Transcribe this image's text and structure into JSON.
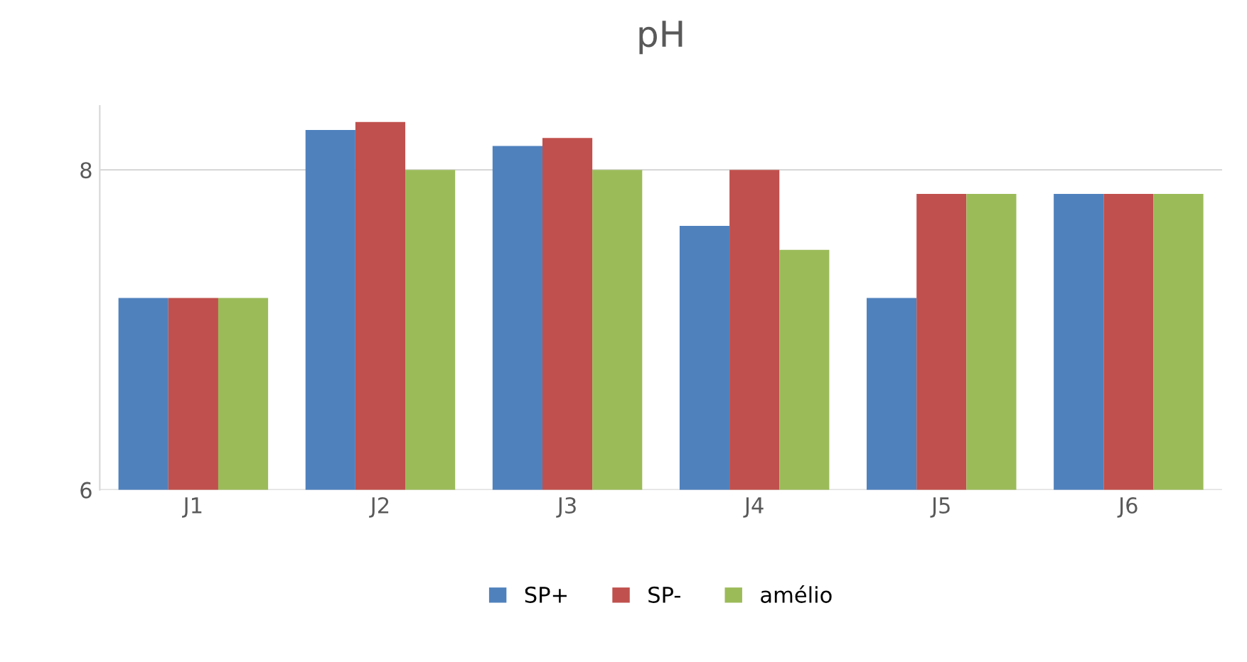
{
  "chart_data": {
    "type": "bar",
    "title": "pH",
    "categories": [
      "J1",
      "J2",
      "J3",
      "J4",
      "J5",
      "J6"
    ],
    "series": [
      {
        "name": "SP+",
        "color": "#4f81bd",
        "values": [
          7.2,
          8.25,
          8.15,
          7.65,
          7.2,
          7.85
        ]
      },
      {
        "name": "SP-",
        "color": "#c0504d",
        "values": [
          7.2,
          8.3,
          8.2,
          8.0,
          7.85,
          7.85
        ]
      },
      {
        "name": "amélio",
        "color": "#9bbb59",
        "values": [
          7.2,
          8.0,
          8.0,
          7.5,
          7.85,
          7.85
        ]
      }
    ],
    "ylim": [
      6,
      8.4
    ],
    "yticks": [
      6,
      8
    ],
    "grid": "y",
    "legend": "bottom"
  }
}
